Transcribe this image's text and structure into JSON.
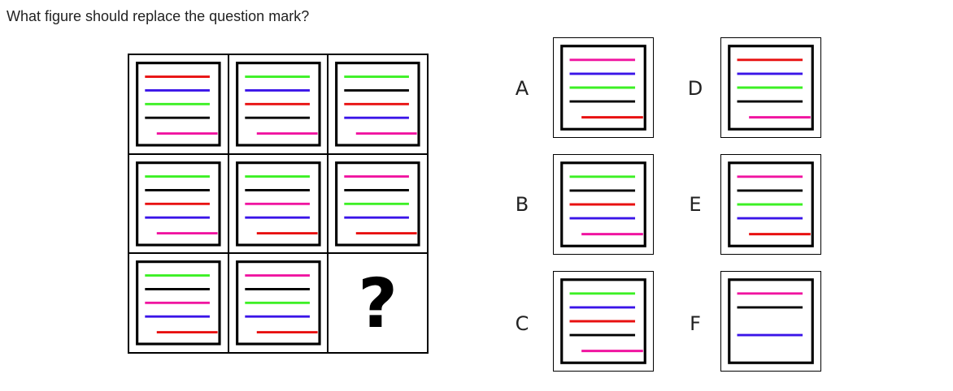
{
  "question": "What figure should replace the question mark?",
  "colors": {
    "red": "#e81010",
    "blue": "#3a14e8",
    "green": "#3cf024",
    "black": "#000000",
    "pink": "#f014a0"
  },
  "grid": [
    [
      "red",
      "blue",
      "green",
      "black",
      "pink"
    ],
    [
      "green",
      "blue",
      "red",
      "black",
      "pink"
    ],
    [
      "green",
      "black",
      "red",
      "blue",
      "pink"
    ],
    [
      "green",
      "black",
      "red",
      "blue",
      "pink"
    ],
    [
      "green",
      "black",
      "pink",
      "blue",
      "red"
    ],
    [
      "pink",
      "black",
      "green",
      "blue",
      "red"
    ],
    [
      "green",
      "black",
      "pink",
      "blue",
      "red"
    ],
    [
      "pink",
      "black",
      "green",
      "blue",
      "red"
    ],
    null
  ],
  "missing_mark": "?",
  "options": [
    {
      "letter": "A",
      "lines": [
        "pink",
        "blue",
        "green",
        "black",
        "red"
      ]
    },
    {
      "letter": "B",
      "lines": [
        "green",
        "black",
        "red",
        "blue",
        "pink"
      ]
    },
    {
      "letter": "C",
      "lines": [
        "green",
        "blue",
        "red",
        "black",
        "pink"
      ]
    },
    {
      "letter": "D",
      "lines": [
        "red",
        "blue",
        "green",
        "black",
        "pink"
      ]
    },
    {
      "letter": "E",
      "lines": [
        "pink",
        "black",
        "green",
        "blue",
        "red"
      ]
    },
    {
      "letter": "F",
      "lines": [
        "pink",
        "black",
        null,
        "blue",
        null
      ]
    }
  ]
}
